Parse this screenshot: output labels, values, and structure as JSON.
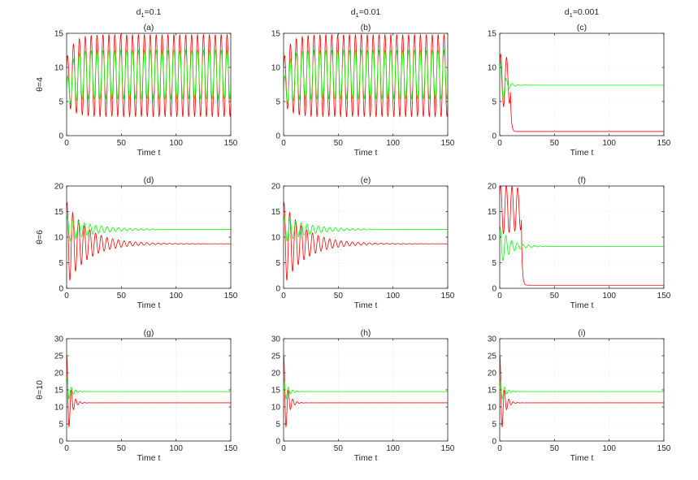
{
  "columns": [
    {
      "prefix": "d",
      "sub": "1",
      "suffix": "=0.1"
    },
    {
      "prefix": "d",
      "sub": "1",
      "suffix": "=0.01"
    },
    {
      "prefix": "d",
      "sub": "1",
      "suffix": "=0.001"
    }
  ],
  "rows": [
    {
      "label": "θ=4",
      "ymax": 15,
      "yticks": [
        0,
        5,
        10,
        15
      ]
    },
    {
      "label": "θ=6",
      "ymax": 20,
      "yticks": [
        0,
        5,
        10,
        15,
        20
      ]
    },
    {
      "label": "θ=10",
      "ymax": 30,
      "yticks": [
        0,
        5,
        10,
        15,
        20,
        25,
        30
      ]
    }
  ],
  "colors": {
    "prey": "#ff0000",
    "predator": "#00ff00",
    "axis": "#262626"
  },
  "chart_data": [
    {
      "type": "line",
      "title": "(a)",
      "xlabel": "Time t",
      "ylabel": "θ=4",
      "xlim": [
        0,
        150
      ],
      "ylim": [
        0,
        15
      ],
      "xticks": [
        "0",
        "50",
        "100",
        "150"
      ],
      "yticks": [
        "0",
        "5",
        "10",
        "15"
      ],
      "grid": true,
      "series": [
        {
          "name": "red",
          "color": "#ff0000",
          "behavior": "limit_cycle",
          "start": 8,
          "min": 2.8,
          "max": 14.8,
          "period": 5.4,
          "settle": 20
        },
        {
          "name": "green",
          "color": "#00ff00",
          "behavior": "limit_cycle",
          "start": 6,
          "min": 5.4,
          "max": 12.5,
          "period": 5.4,
          "settle": 15
        }
      ]
    },
    {
      "type": "line",
      "title": "(b)",
      "xlabel": "Time t",
      "ylabel": "",
      "xlim": [
        0,
        150
      ],
      "ylim": [
        0,
        15
      ],
      "xticks": [
        "0",
        "50",
        "100",
        "150"
      ],
      "yticks": [
        "0",
        "5",
        "10",
        "15"
      ],
      "grid": true,
      "series": [
        {
          "name": "red",
          "color": "#ff0000",
          "behavior": "limit_cycle",
          "start": 8,
          "min": 2.8,
          "max": 14.8,
          "period": 5.4,
          "settle": 20
        },
        {
          "name": "green",
          "color": "#00ff00",
          "behavior": "limit_cycle",
          "start": 6,
          "min": 5.4,
          "max": 12.5,
          "period": 5.4,
          "settle": 15
        }
      ]
    },
    {
      "type": "line",
      "title": "(c)",
      "xlabel": "Time t",
      "ylabel": "",
      "xlim": [
        0,
        150
      ],
      "ylim": [
        0,
        15
      ],
      "xticks": [
        "0",
        "50",
        "100",
        "150"
      ],
      "yticks": [
        "0",
        "5",
        "10",
        "15"
      ],
      "grid": true,
      "series": [
        {
          "name": "red",
          "color": "#ff0000",
          "behavior": "collapse",
          "start": 8,
          "amp": 4,
          "period": 5.4,
          "collapse_t": 10,
          "final": 0.6
        },
        {
          "name": "green",
          "color": "#00ff00",
          "behavior": "damped",
          "start": 6,
          "amp": 4.5,
          "period": 5.4,
          "tau": 4,
          "final": 7.4
        }
      ]
    },
    {
      "type": "line",
      "title": "(d)",
      "xlabel": "Time t",
      "ylabel": "θ=6",
      "xlim": [
        0,
        150
      ],
      "ylim": [
        0,
        20
      ],
      "xticks": [
        "0",
        "50",
        "100",
        "150"
      ],
      "yticks": [
        "0",
        "5",
        "10",
        "15",
        "20"
      ],
      "grid": true,
      "series": [
        {
          "name": "red",
          "color": "#ff0000",
          "behavior": "damped",
          "start": 15.5,
          "amp": 6,
          "period": 5.2,
          "tau": 22,
          "final": 8.7
        },
        {
          "name": "green",
          "color": "#00ff00",
          "behavior": "damped",
          "start": 10,
          "amp": 3,
          "period": 5.2,
          "tau": 22,
          "final": 11.5
        }
      ]
    },
    {
      "type": "line",
      "title": "(e)",
      "xlabel": "Time t",
      "ylabel": "",
      "xlim": [
        0,
        150
      ],
      "ylim": [
        0,
        20
      ],
      "xticks": [
        "0",
        "50",
        "100",
        "150"
      ],
      "yticks": [
        "0",
        "5",
        "10",
        "15",
        "20"
      ],
      "grid": true,
      "series": [
        {
          "name": "red",
          "color": "#ff0000",
          "behavior": "damped",
          "start": 15.5,
          "amp": 6,
          "period": 5.2,
          "tau": 22,
          "final": 8.7
        },
        {
          "name": "green",
          "color": "#00ff00",
          "behavior": "damped",
          "start": 10,
          "amp": 3,
          "period": 5.2,
          "tau": 22,
          "final": 11.5
        }
      ]
    },
    {
      "type": "line",
      "title": "(f)",
      "xlabel": "Time t",
      "ylabel": "",
      "xlim": [
        0,
        150
      ],
      "ylim": [
        0,
        20
      ],
      "xticks": [
        "0",
        "50",
        "100",
        "150"
      ],
      "yticks": [
        "0",
        "5",
        "10",
        "15",
        "20"
      ],
      "grid": true,
      "series": [
        {
          "name": "red",
          "color": "#ff0000",
          "behavior": "collapse",
          "start": 15.5,
          "amp": 5,
          "period": 5.2,
          "collapse_t": 20,
          "final": 0.6
        },
        {
          "name": "green",
          "color": "#00ff00",
          "behavior": "damped",
          "start": 11,
          "amp": 3,
          "period": 5.2,
          "tau": 10,
          "final": 8.2
        }
      ]
    },
    {
      "type": "line",
      "title": "(g)",
      "xlabel": "Time t",
      "ylabel": "θ=10",
      "xlim": [
        0,
        150
      ],
      "ylim": [
        0,
        30
      ],
      "xticks": [
        "0",
        "50",
        "100",
        "150"
      ],
      "yticks": [
        "0",
        "5",
        "10",
        "15",
        "20",
        "25",
        "30"
      ],
      "grid": true,
      "series": [
        {
          "name": "red",
          "color": "#ff0000",
          "behavior": "damped",
          "start": 22.5,
          "amp": 11,
          "period": 4,
          "tau": 3.5,
          "final": 11.2
        },
        {
          "name": "green",
          "color": "#00ff00",
          "behavior": "damped",
          "start": 16,
          "amp": 3.5,
          "period": 4,
          "tau": 4,
          "final": 14.5
        }
      ]
    },
    {
      "type": "line",
      "title": "(h)",
      "xlabel": "Time t",
      "ylabel": "",
      "xlim": [
        0,
        150
      ],
      "ylim": [
        0,
        30
      ],
      "xticks": [
        "0",
        "50",
        "100",
        "150"
      ],
      "yticks": [
        "0",
        "5",
        "10",
        "15",
        "20",
        "25",
        "30"
      ],
      "grid": true,
      "series": [
        {
          "name": "red",
          "color": "#ff0000",
          "behavior": "damped",
          "start": 22.5,
          "amp": 11,
          "period": 4,
          "tau": 3.5,
          "final": 11.2
        },
        {
          "name": "green",
          "color": "#00ff00",
          "behavior": "damped",
          "start": 16,
          "amp": 3.5,
          "period": 4,
          "tau": 4,
          "final": 14.5
        }
      ]
    },
    {
      "type": "line",
      "title": "(i)",
      "xlabel": "Time t",
      "ylabel": "",
      "xlim": [
        0,
        150
      ],
      "ylim": [
        0,
        30
      ],
      "xticks": [
        "0",
        "50",
        "100",
        "150"
      ],
      "yticks": [
        "0",
        "5",
        "10",
        "15",
        "20",
        "25",
        "30"
      ],
      "grid": true,
      "series": [
        {
          "name": "red",
          "color": "#ff0000",
          "behavior": "damped",
          "start": 22.5,
          "amp": 11,
          "period": 4,
          "tau": 3.5,
          "final": 11.2
        },
        {
          "name": "green",
          "color": "#00ff00",
          "behavior": "damped",
          "start": 16,
          "amp": 3.5,
          "period": 4,
          "tau": 4,
          "final": 14.5
        }
      ]
    }
  ]
}
